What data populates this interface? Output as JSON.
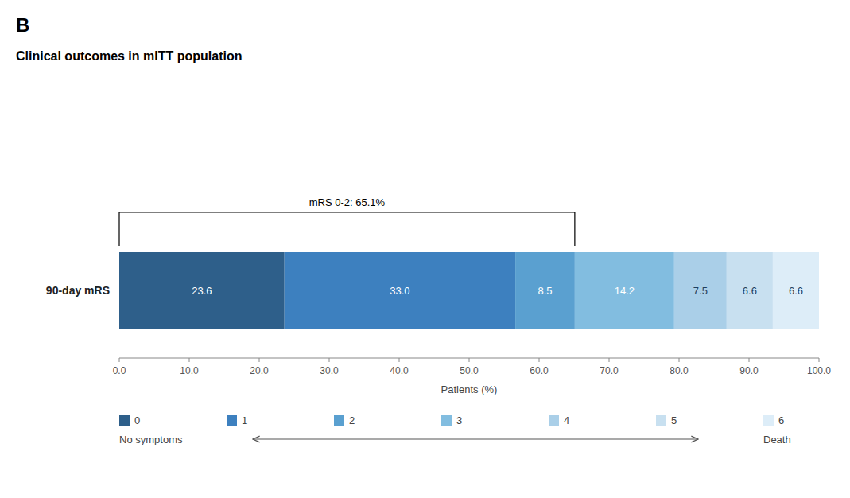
{
  "chart_data": {
    "type": "bar",
    "orientation": "horizontal",
    "stacked": true,
    "data_labels": true,
    "grid": false,
    "legend": "bottom",
    "panel_label": "B",
    "title": "Clinical outcomes in mITT population",
    "xlabel": "Patients (%)",
    "categories": [
      "90-day mRS"
    ],
    "xlim": [
      0,
      100
    ],
    "xticks": [
      {
        "value": 0,
        "label": "0.0"
      },
      {
        "value": 10,
        "label": "10.0"
      },
      {
        "value": 20,
        "label": "20.0"
      },
      {
        "value": 30,
        "label": "30.0"
      },
      {
        "value": 40,
        "label": "40.0"
      },
      {
        "value": 50,
        "label": "50.0"
      },
      {
        "value": 60,
        "label": "60.0"
      },
      {
        "value": 70,
        "label": "70.0"
      },
      {
        "value": 80,
        "label": "80.0"
      },
      {
        "value": 90,
        "label": "90.0"
      },
      {
        "value": 100,
        "label": "100.0"
      }
    ],
    "series": [
      {
        "name": "0",
        "color": "#2e5f8a",
        "values": [
          23.6
        ],
        "value_labels": [
          "23.6"
        ]
      },
      {
        "name": "1",
        "color": "#3d80bf",
        "values": [
          33.0
        ],
        "value_labels": [
          "33.0"
        ]
      },
      {
        "name": "2",
        "color": "#5aa0d0",
        "values": [
          8.5
        ],
        "value_labels": [
          "8.5"
        ]
      },
      {
        "name": "3",
        "color": "#82bde0",
        "values": [
          14.2
        ],
        "value_labels": [
          "14.2"
        ]
      },
      {
        "name": "4",
        "color": "#aacfe8",
        "values": [
          7.5
        ],
        "value_labels": [
          "7.5"
        ]
      },
      {
        "name": "5",
        "color": "#c8e0f0",
        "values": [
          6.6
        ],
        "value_labels": [
          "6.6"
        ]
      },
      {
        "name": "6",
        "color": "#ddedf8",
        "values": [
          6.6
        ],
        "value_labels": [
          "6.6"
        ]
      }
    ],
    "annotations": [
      {
        "text": "mRS 0-2: 65.1%",
        "start": 0,
        "end": 65.1
      }
    ],
    "legend_scale": {
      "start_label": "No symptoms",
      "end_label": "Death"
    }
  }
}
